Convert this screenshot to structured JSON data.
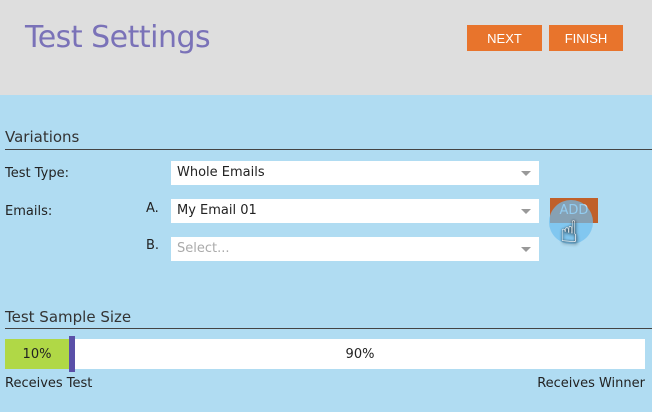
{
  "header": {
    "title": "Test Settings",
    "next_label": "NEXT",
    "finish_label": "FINISH"
  },
  "variations": {
    "heading": "Variations",
    "test_type_label": "Test Type:",
    "test_type_value": "Whole Emails",
    "emails_label": "Emails:",
    "emails": [
      {
        "letter": "A.",
        "value": "My Email 01"
      },
      {
        "letter": "B.",
        "placeholder": "Select..."
      }
    ],
    "add_label": "ADD"
  },
  "sample": {
    "heading": "Test Sample Size",
    "test_percent": 10,
    "test_label": "10%",
    "winner_label": "90%",
    "receives_test": "Receives Test",
    "receives_winner": "Receives Winner"
  },
  "colors": {
    "accent": "#e8742c",
    "title": "#7a72b8",
    "test_fill": "#b0d846",
    "handle": "#5a50a8",
    "background": "#b0dcf2"
  }
}
